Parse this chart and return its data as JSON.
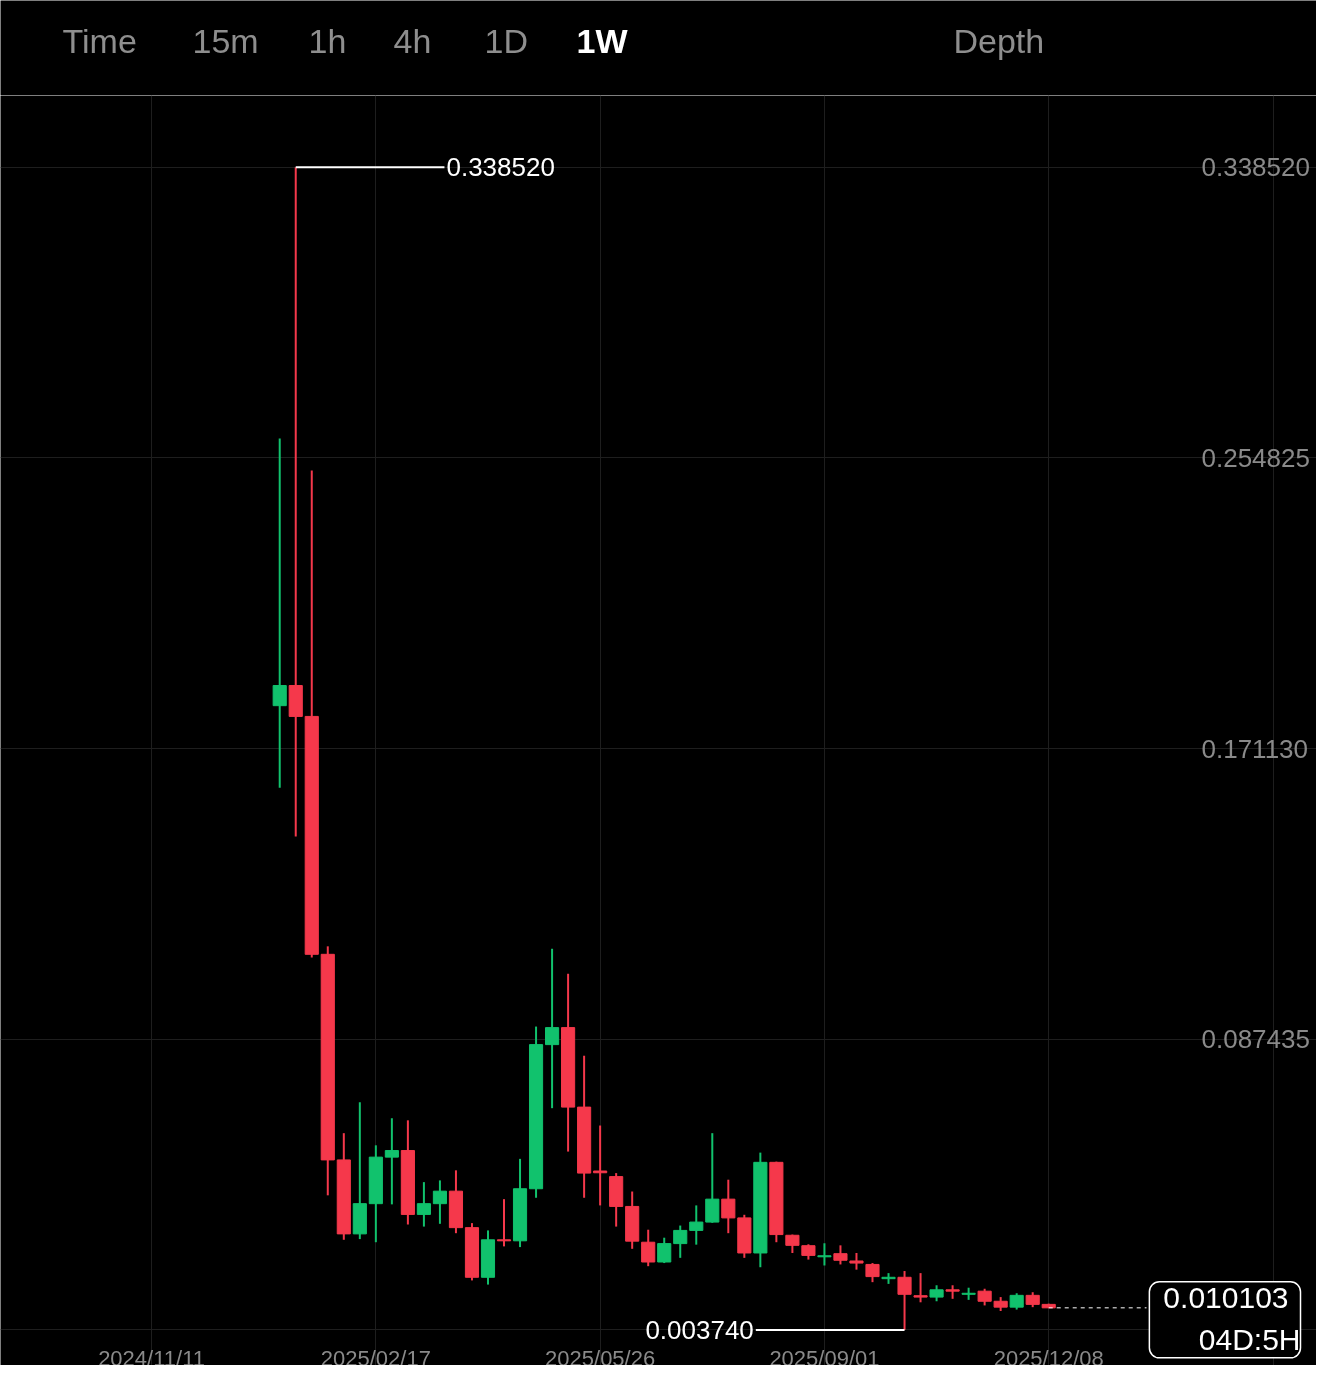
{
  "chart_data": {
    "type": "candlestick",
    "x": [
      "2025-01-06",
      "2025-01-13",
      "2025-01-20",
      "2025-01-27",
      "2025-02-03",
      "2025-02-10",
      "2025-02-17",
      "2025-02-24",
      "2025-03-03",
      "2025-03-10",
      "2025-03-17",
      "2025-03-24",
      "2025-03-31",
      "2025-04-07",
      "2025-04-14",
      "2025-04-21",
      "2025-04-28",
      "2025-05-05",
      "2025-05-12",
      "2025-05-19",
      "2025-05-26",
      "2025-06-02",
      "2025-06-09",
      "2025-06-16",
      "2025-06-23",
      "2025-06-30",
      "2025-07-07",
      "2025-07-14",
      "2025-07-21",
      "2025-07-28",
      "2025-08-04",
      "2025-08-11",
      "2025-08-18",
      "2025-08-25",
      "2025-09-01",
      "2025-09-08",
      "2025-09-15",
      "2025-09-22",
      "2025-09-29",
      "2025-10-06",
      "2025-10-13",
      "2025-10-20",
      "2025-10-27",
      "2025-11-03",
      "2025-11-10",
      "2025-11-17",
      "2025-11-24",
      "2025-12-01",
      "2025-12-08"
    ],
    "ohlc": [
      [
        0.1835,
        0.2604,
        0.1599,
        0.1893
      ],
      [
        0.1893,
        0.33852,
        0.1458,
        0.1804
      ],
      [
        0.1804,
        0.2512,
        0.111,
        0.1119
      ],
      [
        0.1119,
        0.1142,
        0.0425,
        0.0527
      ],
      [
        0.0527,
        0.0604,
        0.0297,
        0.0314
      ],
      [
        0.0314,
        0.0693,
        0.0299,
        0.0401
      ],
      [
        0.0401,
        0.0569,
        0.029,
        0.0535
      ],
      [
        0.0535,
        0.0647,
        0.0399,
        0.0554
      ],
      [
        0.0554,
        0.0641,
        0.0341,
        0.037
      ],
      [
        0.037,
        0.0463,
        0.0335,
        0.0401
      ],
      [
        0.0401,
        0.0468,
        0.0343,
        0.0437
      ],
      [
        0.0437,
        0.0497,
        0.0316,
        0.0332
      ],
      [
        0.0332,
        0.0345,
        0.018,
        0.0189
      ],
      [
        0.0189,
        0.0324,
        0.0168,
        0.0297
      ],
      [
        0.0297,
        0.0414,
        0.0278,
        0.0294
      ],
      [
        0.0294,
        0.053,
        0.0276,
        0.0444
      ],
      [
        0.0444,
        0.0911,
        0.0418,
        0.0859
      ],
      [
        0.0859,
        0.1135,
        0.0676,
        0.0908
      ],
      [
        0.0908,
        0.1063,
        0.0551,
        0.0679
      ],
      [
        0.0679,
        0.0827,
        0.0418,
        0.0489
      ],
      [
        0.0495,
        0.0626,
        0.0396,
        0.049
      ],
      [
        0.0479,
        0.0489,
        0.0335,
        0.0393
      ],
      [
        0.0393,
        0.0436,
        0.0271,
        0.0293
      ],
      [
        0.029,
        0.0326,
        0.0221,
        0.0233
      ],
      [
        0.0233,
        0.0303,
        0.023,
        0.0286
      ],
      [
        0.0286,
        0.0338,
        0.0245,
        0.0324
      ],
      [
        0.0324,
        0.0396,
        0.0283,
        0.0348
      ],
      [
        0.0348,
        0.0604,
        0.0346,
        0.0414
      ],
      [
        0.0414,
        0.047,
        0.0316,
        0.036
      ],
      [
        0.036,
        0.0369,
        0.0245,
        0.0259
      ],
      [
        0.0259,
        0.0548,
        0.0218,
        0.052
      ],
      [
        0.052,
        0.0522,
        0.029,
        0.0312
      ],
      [
        0.031,
        0.0312,
        0.0259,
        0.0281
      ],
      [
        0.028,
        0.0284,
        0.024,
        0.0252
      ],
      [
        0.0248,
        0.0287,
        0.0223,
        0.0251
      ],
      [
        0.0257,
        0.0281,
        0.0226,
        0.0238
      ],
      [
        0.0236,
        0.0259,
        0.0211,
        0.023
      ],
      [
        0.0226,
        0.023,
        0.0175,
        0.0191
      ],
      [
        0.0185,
        0.0201,
        0.017,
        0.0189
      ],
      [
        0.0189,
        0.0207,
        0.00374,
        0.014
      ],
      [
        0.0136,
        0.0201,
        0.0117,
        0.0132
      ],
      [
        0.0132,
        0.0166,
        0.012,
        0.0153
      ],
      [
        0.0153,
        0.0166,
        0.0127,
        0.0149
      ],
      [
        0.014,
        0.0159,
        0.0124,
        0.0143
      ],
      [
        0.0149,
        0.0156,
        0.0108,
        0.012
      ],
      [
        0.012,
        0.0132,
        0.0092,
        0.0103
      ],
      [
        0.0103,
        0.0143,
        0.0096,
        0.0137
      ],
      [
        0.0137,
        0.0146,
        0.0103,
        0.0111
      ],
      [
        0.0111,
        0.0113,
        0.0101,
        0.010103
      ]
    ],
    "colors": [
      "#11c26d",
      "#f5384b",
      "#f5384b",
      "#f5384b",
      "#f5384b",
      "#11c26d",
      "#11c26d",
      "#11c26d",
      "#f5384b",
      "#11c26d",
      "#11c26d",
      "#f5384b",
      "#f5384b",
      "#11c26d",
      "#f5384b",
      "#11c26d",
      "#11c26d",
      "#11c26d",
      "#f5384b",
      "#f5384b",
      "#f5384b",
      "#f5384b",
      "#f5384b",
      "#f5384b",
      "#11c26d",
      "#11c26d",
      "#11c26d",
      "#11c26d",
      "#f5384b",
      "#f5384b",
      "#11c26d",
      "#f5384b",
      "#f5384b",
      "#f5384b",
      "#11c26d",
      "#f5384b",
      "#f5384b",
      "#f5384b",
      "#11c26d",
      "#f5384b",
      "#f5384b",
      "#11c26d",
      "#f5384b",
      "#11c26d",
      "#f5384b",
      "#f5384b",
      "#11c26d",
      "#f5384b",
      "#f5384b"
    ],
    "xlim": [
      "2024-09-06",
      "2026-04-04"
    ],
    "ylim": [
      -0.0065,
      0.3592
    ],
    "xticks": [
      {
        "value": "2024-11-11",
        "label": "2024/11/11"
      },
      {
        "value": "2025-02-17",
        "label": "2025/02/17"
      },
      {
        "value": "2025-05-26",
        "label": "2025/05/26"
      },
      {
        "value": "2025-09-01",
        "label": "2025/09/01"
      },
      {
        "value": "2025-12-08",
        "label": "2025/12/08"
      },
      {
        "value": "2026-03-16",
        "label": null
      }
    ],
    "yticks": [
      {
        "value": 0.00374,
        "label": null
      },
      {
        "value": 0.087435,
        "label": "0.087435"
      },
      {
        "value": 0.17113,
        "label": "0.171130"
      },
      {
        "value": 0.254825,
        "label": "0.254825"
      },
      {
        "value": 0.33852,
        "label": "0.338520"
      }
    ],
    "grid": true,
    "ref_lines": [
      {
        "axis": "y",
        "value": 0.010103,
        "label": "0.010103",
        "line_style": "dashed",
        "color": "#ffffff"
      }
    ],
    "annotations": [
      "Time",
      "15m",
      "1h",
      "4h",
      "1D",
      "1W",
      "Depth",
      {
        "text": "0.338520",
        "x": "2025-01-13",
        "y": 0.33852
      },
      {
        "text": "0.003740",
        "x": "2025-10-06",
        "y": 0.00374
      },
      "04D:5H"
    ]
  }
}
